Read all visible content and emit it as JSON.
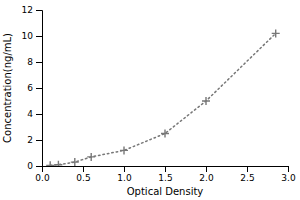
{
  "chart_data": {
    "type": "line",
    "xlabel": "Optical Density",
    "ylabel": "Concentration(ng/mL)",
    "x": [
      0.1,
      0.2,
      0.4,
      0.6,
      1.0,
      1.5,
      2.0,
      2.85
    ],
    "values": [
      0.05,
      0.1,
      0.3,
      0.7,
      1.2,
      2.5,
      5.0,
      10.2
    ],
    "xlim": [
      0,
      3
    ],
    "ylim": [
      0,
      12
    ],
    "xticks": [
      {
        "value": 0,
        "label": "0.0"
      },
      {
        "value": 0.5,
        "label": "0.5"
      },
      {
        "value": 1,
        "label": "1.0"
      },
      {
        "value": 1.5,
        "label": "1.5"
      },
      {
        "value": 2,
        "label": "2.0"
      },
      {
        "value": 2.5,
        "label": "2.5"
      },
      {
        "value": 3,
        "label": "3.0"
      }
    ],
    "yticks": [
      0,
      2,
      4,
      6,
      8,
      10,
      12
    ],
    "color": "#777777",
    "marker": "plus",
    "line_style": "dotted"
  }
}
